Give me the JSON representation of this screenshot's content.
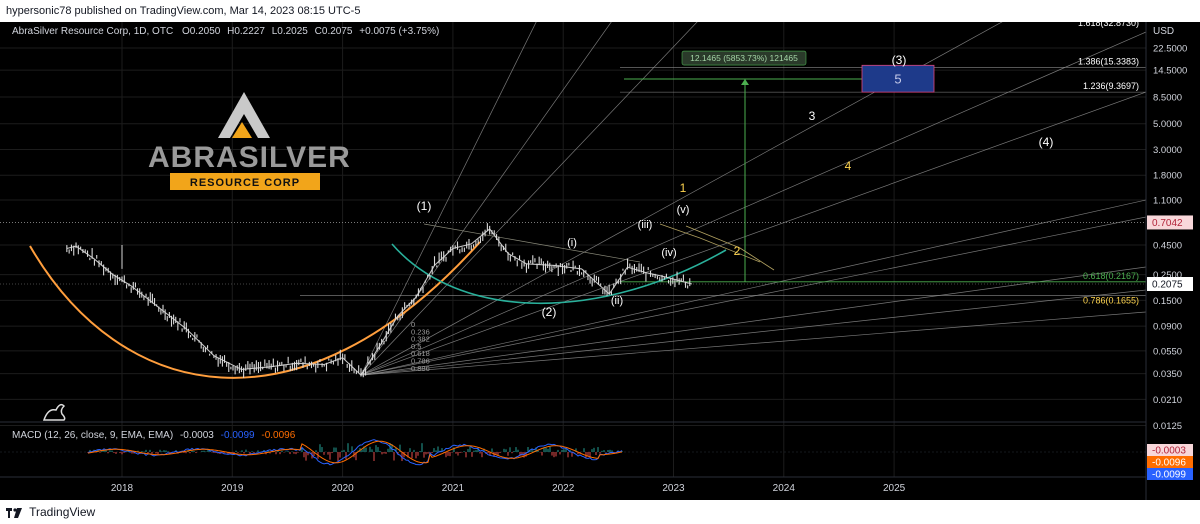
{
  "header": {
    "published": "hypersonic78 published on TradingView.com, Mar 14, 2023 08:15 UTC-5"
  },
  "footer": {
    "brand": "TradingView"
  },
  "legend": {
    "symbol": "AbraSilver Resource Corp, 1D, OTC",
    "o_label": "O",
    "o": "0.2050",
    "h_label": "H",
    "h": "0.2227",
    "l_label": "L",
    "l": "0.2025",
    "c_label": "C",
    "c": "0.2075",
    "change": "+0.0075 (+3.75%)"
  },
  "logo": {
    "brand": "ABRASILVER",
    "sub": "RESOURCE CORP"
  },
  "colors": {
    "background": "#000000",
    "grid": "#1c1c1c",
    "candle": "#d9d9d9",
    "orange": "#ff9e3d",
    "teal": "#2ab09b",
    "green": "#4caf50",
    "macd": "#2962ff",
    "signal": "#ff6d00",
    "yellow": "#ffd54f",
    "box": "#1e3a8a"
  },
  "price_axis": {
    "currency": "USD",
    "ticks": [
      "22.5000",
      "14.5000",
      "8.5000",
      "5.0000",
      "3.0000",
      "1.8000",
      "1.1000",
      "0.4500",
      "0.2500",
      "0.1500",
      "0.0900",
      "0.0550",
      "0.0350",
      "0.0210",
      "0.0125"
    ],
    "badges": [
      {
        "value": "0.7042",
        "kind": "pink"
      },
      {
        "value": "0.2075",
        "kind": "white"
      }
    ],
    "macd_badges": [
      {
        "value": "-0.0003",
        "kind": "pink"
      },
      {
        "value": "-0.0096",
        "kind": "orange"
      },
      {
        "value": "-0.0099",
        "kind": "blue"
      }
    ]
  },
  "time_axis": [
    "2018",
    "2019",
    "2020",
    "2021",
    "2022",
    "2023",
    "2024",
    "2025"
  ],
  "fib_extension": [
    {
      "label": "1.618(32.8730)"
    },
    {
      "label": "1.386(15.3383)"
    },
    {
      "label": "1.236(9.3697)"
    }
  ],
  "fib_retracement": [
    {
      "label": "0.618(0.2167)",
      "color": "green"
    },
    {
      "label": "0.786(0.1655)",
      "color": "yellow"
    }
  ],
  "fan_labels": [
    "0",
    "0.236",
    "0.382",
    "0.5",
    "0.618",
    "0.786",
    "0.886"
  ],
  "measure": {
    "label": "12.1465 (5853.73%) 121465"
  },
  "target_box": {
    "label": "5"
  },
  "waves": {
    "w1": "(1)",
    "w2": "(2)",
    "w3": "(3)",
    "w4": "(4)",
    "wi": "(i)",
    "wii": "(ii)",
    "wiii": "(iii)",
    "wiv": "(iv)",
    "wv": "(v)",
    "n1": "1",
    "n2": "2",
    "n3": "3",
    "n4": "4"
  },
  "macd": {
    "label": "MACD (12, 26, close, 9, EMA, EMA)",
    "v1": "-0.0003",
    "v2": "-0.0099",
    "v3": "-0.0096"
  },
  "chart_data": {
    "type": "line",
    "title": "AbraSilver Resource Corp, 1D, OTC",
    "xlabel": "",
    "ylabel": "USD",
    "y_scale": "log",
    "ylim": [
      0.0125,
      32.873
    ],
    "xlim": [
      "2017-01",
      "2025-12"
    ],
    "grid": true,
    "series": [
      {
        "name": "AbraSilver Resource Corp",
        "points": [
          [
            "2017-07",
            0.42
          ],
          [
            "2017-08",
            0.44
          ],
          [
            "2017-10",
            0.34
          ],
          [
            "2017-12",
            0.25
          ],
          [
            "2018-02",
            0.2
          ],
          [
            "2018-05",
            0.13
          ],
          [
            "2018-08",
            0.085
          ],
          [
            "2018-11",
            0.05
          ],
          [
            "2019-02",
            0.038
          ],
          [
            "2019-05",
            0.04
          ],
          [
            "2019-08",
            0.043
          ],
          [
            "2019-11",
            0.042
          ],
          [
            "2020-01",
            0.048
          ],
          [
            "2020-03",
            0.034
          ],
          [
            "2020-05",
            0.06
          ],
          [
            "2020-07",
            0.11
          ],
          [
            "2020-09",
            0.16
          ],
          [
            "2020-11",
            0.3
          ],
          [
            "2021-01",
            0.42
          ],
          [
            "2021-03",
            0.46
          ],
          [
            "2021-05",
            0.62
          ],
          [
            "2021-07",
            0.38
          ],
          [
            "2021-09",
            0.31
          ],
          [
            "2021-12",
            0.3
          ],
          [
            "2022-03",
            0.28
          ],
          [
            "2022-06",
            0.17
          ],
          [
            "2022-08",
            0.29
          ],
          [
            "2022-10",
            0.26
          ],
          [
            "2022-12",
            0.24
          ],
          [
            "2023-03",
            0.2075
          ]
        ]
      }
    ],
    "macd": {
      "macd": -0.0003,
      "signal": -0.0099,
      "histogram": -0.0096
    },
    "annotations": {
      "fib_extension": [
        [
          1.618,
          32.873
        ],
        [
          1.386,
          15.3383
        ],
        [
          1.236,
          9.3697
        ]
      ],
      "fib_retracement": [
        [
          0.618,
          0.2167
        ],
        [
          0.786,
          0.1655
        ]
      ],
      "measure_gain": 12.1465,
      "measure_pct": 5853.73,
      "hline": 0.7042
    }
  }
}
